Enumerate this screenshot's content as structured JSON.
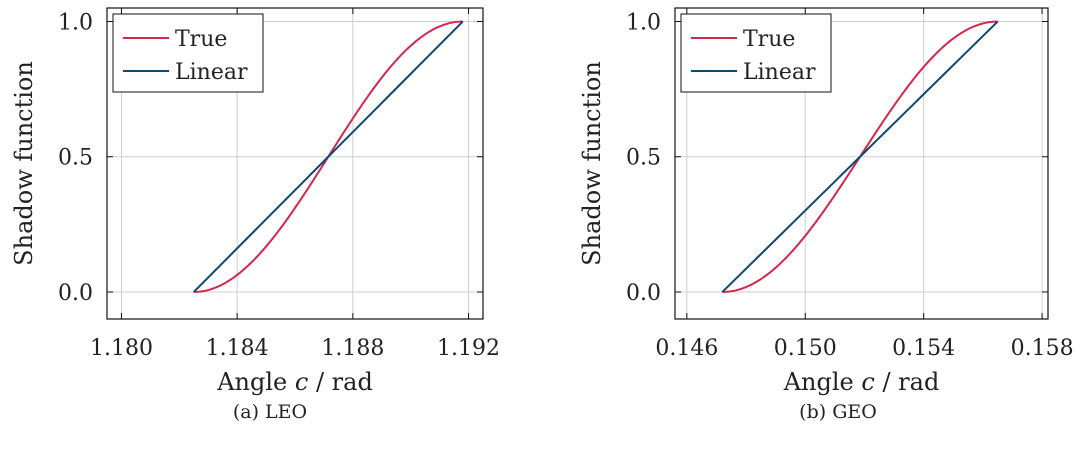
{
  "chart_data": [
    {
      "type": "line",
      "caption": "(a) LEO",
      "xlabel": "Angle c / rad",
      "xlabel_parts": {
        "before": "Angle ",
        "var": "c",
        "after": " / rad"
      },
      "ylabel": "Shadow function",
      "xlim": [
        1.1795,
        1.1925
      ],
      "ylim": [
        -0.1,
        1.05
      ],
      "xticks": [
        1.18,
        1.184,
        1.188,
        1.192
      ],
      "xtick_labels": [
        "1.180",
        "1.184",
        "1.188",
        "1.192"
      ],
      "yticks": [
        0.0,
        0.5,
        1.0
      ],
      "ytick_labels": [
        "0.0",
        "0.5",
        "1.0"
      ],
      "grid": true,
      "legend_position": "top-left",
      "x_range": [
        1.1825,
        1.1918
      ],
      "series": [
        {
          "name": "True",
          "color": "#d6264b",
          "curve": "true",
          "x": [
            1.1825,
            1.1918
          ],
          "y": [
            0,
            1
          ]
        },
        {
          "name": "Linear",
          "color": "#0c4a6e",
          "curve": "linear",
          "x": [
            1.1825,
            1.1918
          ],
          "y": [
            0,
            1
          ]
        }
      ]
    },
    {
      "type": "line",
      "caption": "(b) GEO",
      "xlabel": "Angle c / rad",
      "xlabel_parts": {
        "before": "Angle ",
        "var": "c",
        "after": " / rad"
      },
      "ylabel": "Shadow function",
      "xlim": [
        0.1456,
        0.1582
      ],
      "ylim": [
        -0.1,
        1.05
      ],
      "xticks": [
        0.146,
        0.15,
        0.154,
        0.158
      ],
      "xtick_labels": [
        "0.146",
        "0.150",
        "0.154",
        "0.158"
      ],
      "yticks": [
        0.0,
        0.5,
        1.0
      ],
      "ytick_labels": [
        "0.0",
        "0.5",
        "1.0"
      ],
      "grid": true,
      "legend_position": "top-left",
      "x_range": [
        0.1472,
        0.1565
      ],
      "series": [
        {
          "name": "True",
          "color": "#d6264b",
          "curve": "true",
          "x": [
            0.1472,
            0.1565
          ],
          "y": [
            0,
            1
          ]
        },
        {
          "name": "Linear",
          "color": "#0c4a6e",
          "curve": "linear",
          "x": [
            0.1472,
            0.1565
          ],
          "y": [
            0,
            1
          ]
        }
      ]
    }
  ]
}
